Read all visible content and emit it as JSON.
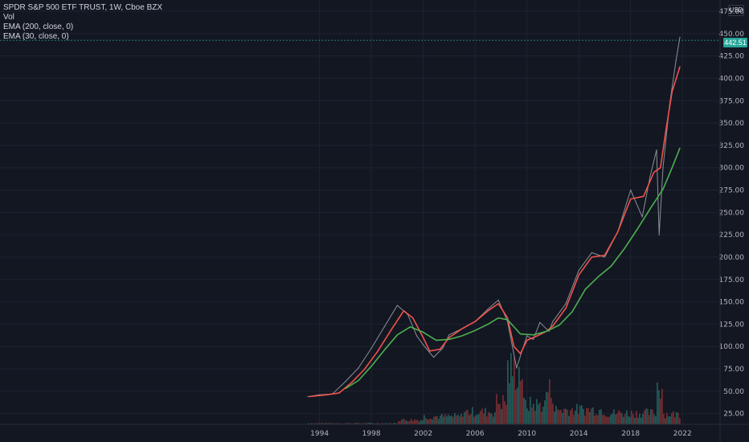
{
  "legend": {
    "title": "SPDR S&P 500 ETF TRUST, 1W, Cboe BZX",
    "vol": "Vol",
    "ema200": "EMA (200, close, 0)",
    "ema30": "EMA (30, close, 0)"
  },
  "currency": "USD",
  "last_price": "442.51",
  "colors": {
    "background": "#131722",
    "grid": "#1f2330",
    "price": "#8a8f98",
    "ema30": "#f0534b",
    "ema200": "#4caf50",
    "last_price_tag": "#26a69a",
    "volume_up": "#2a6b66",
    "volume_down": "#8a3436"
  },
  "chart_data": {
    "type": "line",
    "y_axis": {
      "ticks": [
        "475.00",
        "450.00",
        "425.00",
        "400.00",
        "375.00",
        "350.00",
        "325.00",
        "300.00",
        "275.00",
        "250.00",
        "225.00",
        "200.00",
        "175.00",
        "150.00",
        "125.00",
        "100.00",
        "75.00",
        "50.00",
        "25.00"
      ],
      "tick_values": [
        475,
        450,
        425,
        400,
        375,
        350,
        325,
        300,
        275,
        250,
        225,
        200,
        175,
        150,
        125,
        100,
        75,
        50,
        25
      ],
      "range": [
        13,
        484
      ]
    },
    "x_axis": {
      "ticks": [
        "1994",
        "1998",
        "2002",
        "2006",
        "2010",
        "2014",
        "2018",
        "2022"
      ],
      "tick_values": [
        1994,
        1998,
        2002,
        2006,
        2010,
        2014,
        2018,
        2022
      ],
      "range": [
        1969.35,
        2024.9
      ]
    },
    "grid": true,
    "series": [
      {
        "name": "SPDR S&P 500 ETF TRUST",
        "x": [
          1993.1,
          1994.0,
          1995.0,
          1996.0,
          1997.0,
          1998.0,
          1999.0,
          2000.0,
          2000.8,
          2001.5,
          2002.0,
          2002.8,
          2003.5,
          2004.0,
          2005.0,
          2006.0,
          2007.0,
          2007.8,
          2008.5,
          2009.2,
          2010.0,
          2010.5,
          2011.0,
          2011.7,
          2012.0,
          2013.0,
          2014.0,
          2015.0,
          2016.0,
          2017.0,
          2018.0,
          2018.9,
          2019.5,
          2020.0,
          2020.2,
          2020.5,
          2021.0,
          2021.5,
          2021.8
        ],
        "y": [
          44,
          46,
          47,
          61,
          76,
          98,
          122,
          146,
          136,
          112,
          102,
          88,
          98,
          113,
          120,
          128,
          142,
          152,
          128,
          76,
          112,
          108,
          127,
          117,
          128,
          148,
          185,
          205,
          200,
          228,
          275,
          245,
          290,
          320,
          225,
          300,
          370,
          420,
          446
        ]
      },
      {
        "name": "EMA (30, close, 0)",
        "x": [
          1993.2,
          1994.5,
          1995.5,
          1996.5,
          1997.5,
          1998.5,
          1999.5,
          2000.5,
          2001.2,
          2002.0,
          2002.5,
          2003.3,
          2004.0,
          2005.0,
          2006.0,
          2007.0,
          2007.8,
          2008.5,
          2009.0,
          2009.5,
          2010.0,
          2010.8,
          2011.5,
          2012.0,
          2013.0,
          2014.0,
          2015.0,
          2016.0,
          2017.0,
          2018.0,
          2019.0,
          2019.8,
          2020.3,
          2020.7,
          2021.2,
          2021.8
        ],
        "y": [
          44,
          46,
          48,
          60,
          75,
          95,
          118,
          140,
          132,
          110,
          95,
          97,
          110,
          120,
          128,
          140,
          148,
          132,
          100,
          92,
          107,
          112,
          117,
          123,
          143,
          180,
          200,
          202,
          228,
          265,
          268,
          295,
          300,
          340,
          385,
          413
        ]
      },
      {
        "name": "EMA (200, close, 0)",
        "x": [
          1996.0,
          1997.0,
          1998.0,
          1999.0,
          2000.0,
          2001.0,
          2002.0,
          2003.0,
          2004.0,
          2005.0,
          2006.0,
          2007.0,
          2007.8,
          2008.5,
          2009.5,
          2010.5,
          2011.5,
          2012.5,
          2013.5,
          2014.5,
          2015.5,
          2016.5,
          2017.5,
          2018.5,
          2019.5,
          2020.5,
          2021.2,
          2021.8
        ],
        "y": [
          53,
          62,
          78,
          96,
          113,
          122,
          116,
          107,
          108,
          112,
          118,
          125,
          132,
          130,
          114,
          113,
          117,
          124,
          139,
          164,
          178,
          190,
          209,
          231,
          254,
          276,
          300,
          322
        ]
      }
    ]
  }
}
